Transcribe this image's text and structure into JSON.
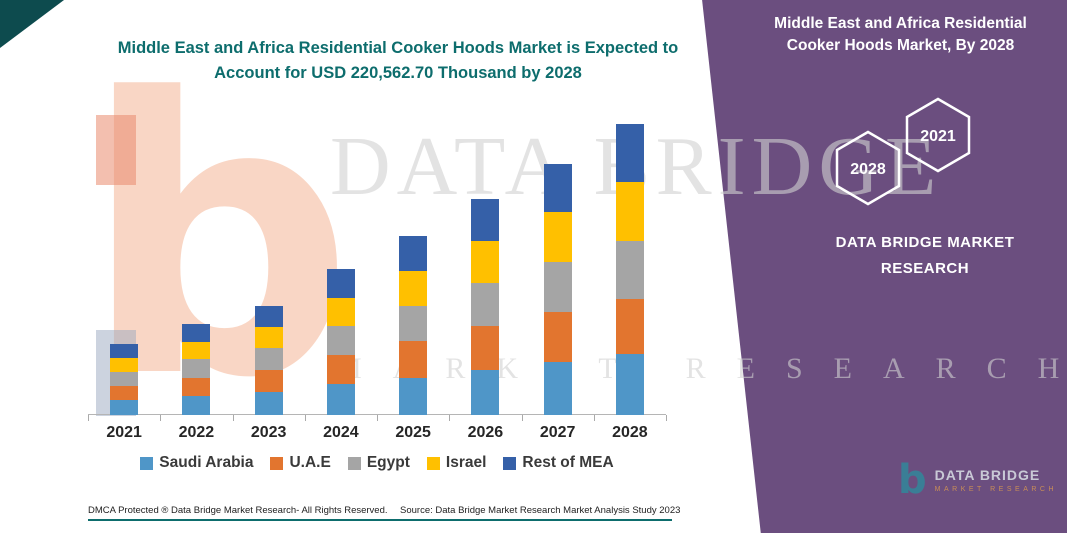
{
  "page": {
    "title_line1": "Middle East and Africa Residential Cooker Hoods Market is Expected to",
    "title_line2": "Account for USD 220,562.70 Thousand by 2028"
  },
  "sidebar": {
    "title": "Middle East and Africa Residential Cooker Hoods Market, By 2028",
    "hexagon_left": "2028",
    "hexagon_right": "2021",
    "brand_line1": "DATA BRIDGE MARKET",
    "brand_line2": "RESEARCH",
    "logo": {
      "b": "b",
      "name": "DATA BRIDGE",
      "subtitle": "MARKET RESEARCH"
    }
  },
  "watermark": {
    "line1": "DATA BRIDGE",
    "line2": "MARKET RESEARCH",
    "logo_b": "b"
  },
  "footer": {
    "left": "DMCA Protected ® Data Bridge Market Research-  All Rights Reserved.",
    "source": "Source: Data Bridge Market Research  Market Analysis Study 2023"
  },
  "colors": {
    "accent_teal": "#0d6d6d",
    "sidebar_purple": "#6b4e7f",
    "watermark_gray": "#d2d2d2"
  },
  "chart_data": {
    "type": "bar",
    "stacked": true,
    "title": "Middle East and Africa Residential Cooker Hoods Market is Expected to Account for USD 220,562.70 Thousand by 2028",
    "unit": "USD Thousand",
    "grid": false,
    "legend_position": "bottom",
    "ylim": [
      0,
      230000
    ],
    "categories": [
      "2021",
      "2022",
      "2023",
      "2024",
      "2025",
      "2026",
      "2027",
      "2028"
    ],
    "series": [
      {
        "name": "Saudi Arabia",
        "color": "#4f96c8",
        "values": [
          11300,
          14500,
          17400,
          23200,
          28500,
          34500,
          40000,
          46000
        ]
      },
      {
        "name": "U.A.E",
        "color": "#e2752f",
        "values": [
          10900,
          14000,
          16800,
          22400,
          27500,
          33000,
          38500,
          42300
        ]
      },
      {
        "name": "Egypt",
        "color": "#a5a5a5",
        "values": [
          10700,
          13800,
          16500,
          22000,
          27000,
          32500,
          38000,
          43800
        ]
      },
      {
        "name": "Israel",
        "color": "#ffc000",
        "values": [
          10500,
          13500,
          16200,
          21600,
          26500,
          32000,
          37500,
          44600
        ]
      },
      {
        "name": "Rest of MEA",
        "color": "#3560a8",
        "values": [
          10400,
          13400,
          16100,
          21500,
          26500,
          31700,
          36600,
          43862.7
        ]
      }
    ],
    "totals_estimated": [
      53800,
      69200,
      83000,
      110700,
      136000,
      163700,
      190600,
      220562.7
    ]
  }
}
